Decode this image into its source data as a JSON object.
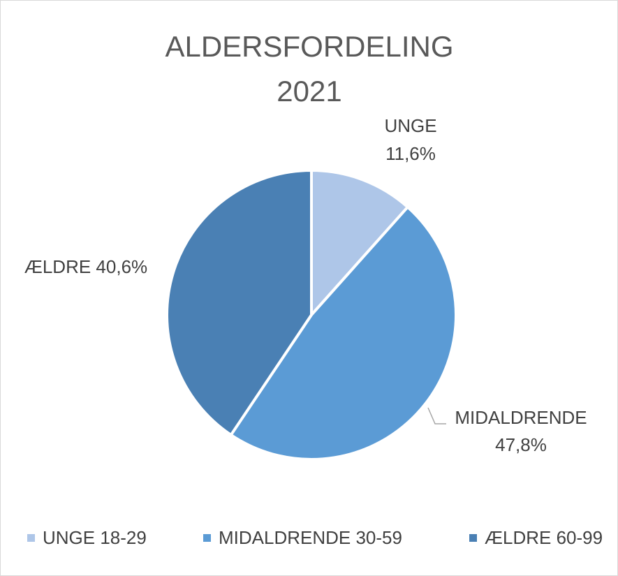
{
  "chart_data": {
    "type": "pie",
    "title": "ALDERSFORDELING 2021",
    "categories": [
      "UNGE 18-29",
      "MIDALDRENDE 30-59",
      "ÆLDRE 60-99"
    ],
    "label_names": [
      "UNGE",
      "MIDALDRENDE",
      "ÆLDRE"
    ],
    "values": [
      11.6,
      47.8,
      40.6
    ],
    "value_labels": [
      "11,6%",
      "47,8%",
      "40,6%"
    ],
    "colors": [
      "#aec6e8",
      "#5b9bd5",
      "#4a80b4"
    ],
    "legend": "bottom"
  }
}
